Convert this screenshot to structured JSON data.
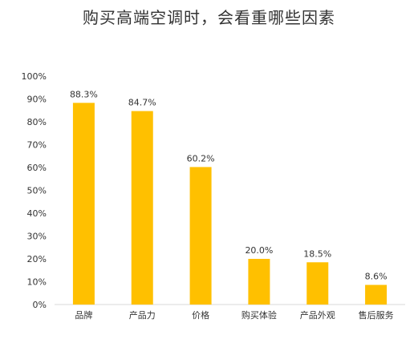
{
  "chart_data": {
    "type": "bar",
    "title": "购买高端空调时，会看重哪些因素",
    "categories": [
      "品牌",
      "产品力",
      "价格",
      "购买体验",
      "产品外观",
      "售后服务"
    ],
    "values": [
      88.3,
      84.7,
      60.2,
      20.0,
      18.5,
      8.6
    ],
    "data_labels": [
      "88.3%",
      "84.7%",
      "60.2%",
      "20.0%",
      "18.5%",
      "8.6%"
    ],
    "y_ticks": [
      "0%",
      "10%",
      "20%",
      "30%",
      "40%",
      "50%",
      "60%",
      "70%",
      "80%",
      "90%",
      "100%"
    ],
    "ylim": [
      0,
      100
    ],
    "grid": false,
    "bar_color": "#FFC000"
  }
}
